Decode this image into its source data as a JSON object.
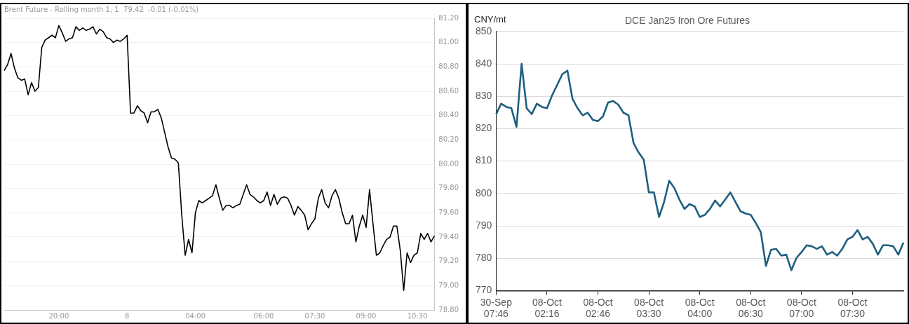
{
  "chart_data": [
    {
      "type": "line",
      "title": "Brent Future - Rolling month 1, 1  79.42  -0.01 (-0.01%)",
      "categories": [
        null,
        null,
        null,
        null,
        null,
        null,
        null,
        null,
        null,
        null,
        null,
        null,
        null,
        null,
        null,
        null,
        "20:00",
        null,
        null,
        null,
        null,
        null,
        null,
        null,
        null,
        null,
        null,
        null,
        null,
        null,
        null,
        null,
        null,
        null,
        null,
        null,
        "8",
        null,
        null,
        null,
        null,
        null,
        null,
        null,
        null,
        null,
        null,
        null,
        null,
        null,
        null,
        null,
        null,
        null,
        null,
        null,
        "04:00",
        null,
        null,
        null,
        null,
        null,
        null,
        null,
        null,
        null,
        null,
        null,
        null,
        null,
        null,
        null,
        null,
        null,
        null,
        null,
        "06:00",
        null,
        null,
        null,
        null,
        null,
        null,
        null,
        null,
        null,
        null,
        null,
        null,
        null,
        null,
        "07:30",
        null,
        null,
        null,
        null,
        null,
        null,
        null,
        null,
        null,
        null,
        null,
        null,
        null,
        null,
        "09:00",
        null,
        null,
        null,
        null,
        null,
        null,
        null,
        null,
        null,
        null,
        null,
        null,
        null,
        null,
        "10:30",
        null,
        null,
        null,
        null,
        null
      ],
      "series": [
        {
          "color": "#000000",
          "values": [
            80.77,
            80.82,
            80.91,
            80.79,
            80.71,
            80.69,
            80.7,
            80.57,
            80.67,
            80.6,
            80.63,
            80.96,
            81.02,
            81.04,
            81.06,
            81.04,
            81.14,
            81.08,
            81.01,
            81.03,
            81.04,
            81.13,
            81.1,
            81.12,
            81.1,
            81.11,
            81.13,
            81.07,
            81.11,
            81.09,
            81.04,
            81.03,
            81.0,
            81.02,
            81.01,
            81.03,
            81.06,
            80.42,
            80.42,
            80.48,
            80.44,
            80.42,
            80.34,
            80.43,
            80.43,
            80.45,
            80.38,
            80.26,
            80.14,
            80.05,
            80.04,
            80.01,
            79.58,
            79.25,
            79.38,
            79.27,
            79.6,
            79.7,
            79.68,
            79.7,
            79.72,
            79.74,
            79.83,
            79.72,
            79.62,
            79.66,
            79.66,
            79.64,
            79.66,
            79.67,
            79.75,
            79.83,
            79.75,
            79.73,
            79.7,
            79.68,
            79.7,
            79.77,
            79.66,
            79.75,
            79.67,
            79.72,
            79.73,
            79.72,
            79.66,
            79.58,
            79.65,
            79.62,
            79.58,
            79.46,
            79.51,
            79.55,
            79.72,
            79.79,
            79.68,
            79.64,
            79.74,
            79.79,
            79.72,
            79.6,
            79.51,
            79.51,
            79.58,
            79.36,
            79.49,
            79.58,
            79.48,
            79.79,
            79.51,
            79.25,
            79.27,
            79.33,
            79.38,
            79.4,
            79.49,
            79.49,
            79.29,
            78.96,
            79.27,
            79.19,
            79.25,
            79.27,
            79.43,
            79.38,
            79.43,
            79.36,
            79.41
          ]
        }
      ],
      "ylim": [
        78.8,
        81.2
      ],
      "yticks": [
        {
          "value": 78.8,
          "label": "78.80"
        },
        {
          "value": 79.0,
          "label": "79.00"
        },
        {
          "value": 79.2,
          "label": "79.20"
        },
        {
          "value": 79.4,
          "label": "79.40"
        },
        {
          "value": 79.6,
          "label": "79.60"
        },
        {
          "value": 79.8,
          "label": "79.80"
        },
        {
          "value": 80.0,
          "label": "80.00"
        },
        {
          "value": 80.2,
          "label": "80.20"
        },
        {
          "value": 80.4,
          "label": "80.40"
        },
        {
          "value": 80.6,
          "label": "80.60"
        },
        {
          "value": 80.8,
          "label": "80.80"
        },
        {
          "value": 81.0,
          "label": "81.00"
        },
        {
          "value": 81.2,
          "label": "81.20"
        }
      ],
      "grid": "y",
      "marker": "none"
    },
    {
      "type": "line",
      "title": "DCE Jan25 Iron Ore Futures",
      "ylabel": "CNY/mt",
      "categories": [
        "30-Sep 07:46",
        null,
        null,
        null,
        null,
        null,
        null,
        null,
        null,
        null,
        "08-Oct 02:16",
        null,
        null,
        null,
        null,
        null,
        null,
        null,
        null,
        null,
        "08-Oct 02:46",
        null,
        null,
        null,
        null,
        null,
        null,
        null,
        null,
        null,
        "08-Oct 03:30",
        null,
        null,
        null,
        null,
        null,
        null,
        null,
        null,
        null,
        "08-Oct 04:00",
        null,
        null,
        null,
        null,
        null,
        null,
        null,
        null,
        null,
        "08-Oct 06:30",
        null,
        null,
        null,
        null,
        null,
        null,
        null,
        null,
        null,
        "08-Oct 07:00",
        null,
        null,
        null,
        null,
        null,
        null,
        null,
        null,
        null,
        "08-Oct 07:30",
        null,
        null,
        null,
        null,
        null,
        null,
        null,
        null,
        null,
        null
      ],
      "series": [
        {
          "color": "#1f5f7f",
          "values": [
            824.5,
            827.7,
            826.7,
            826.3,
            820.5,
            840,
            826.3,
            824.5,
            827.7,
            826.7,
            826.3,
            830.3,
            833.5,
            836.8,
            837.9,
            829.2,
            826.3,
            824.1,
            824.9,
            822.7,
            822.3,
            823.8,
            828.1,
            828.5,
            827.4,
            824.9,
            824.1,
            815.5,
            812.6,
            810.4,
            800.3,
            800.3,
            792.7,
            797.4,
            803.9,
            801.7,
            798.1,
            795.2,
            796.7,
            796,
            792.7,
            793.4,
            795.2,
            797.8,
            796,
            798.1,
            800.3,
            797.4,
            794.5,
            793.8,
            793.4,
            790.9,
            788,
            777.6,
            782.6,
            782.9,
            780.8,
            781.1,
            776.3,
            780.1,
            781.9,
            784,
            783.7,
            782.9,
            783.7,
            781.1,
            781.9,
            780.8,
            782.9,
            785.8,
            786.6,
            788.7,
            785.8,
            786.6,
            784.4,
            781.1,
            784,
            784,
            783.7,
            781.1,
            784.8
          ]
        }
      ],
      "ylim": [
        770,
        850
      ],
      "yticks": [
        770,
        780,
        790,
        800,
        810,
        820,
        830,
        840,
        850
      ],
      "grid": "y",
      "marker": "none"
    }
  ]
}
